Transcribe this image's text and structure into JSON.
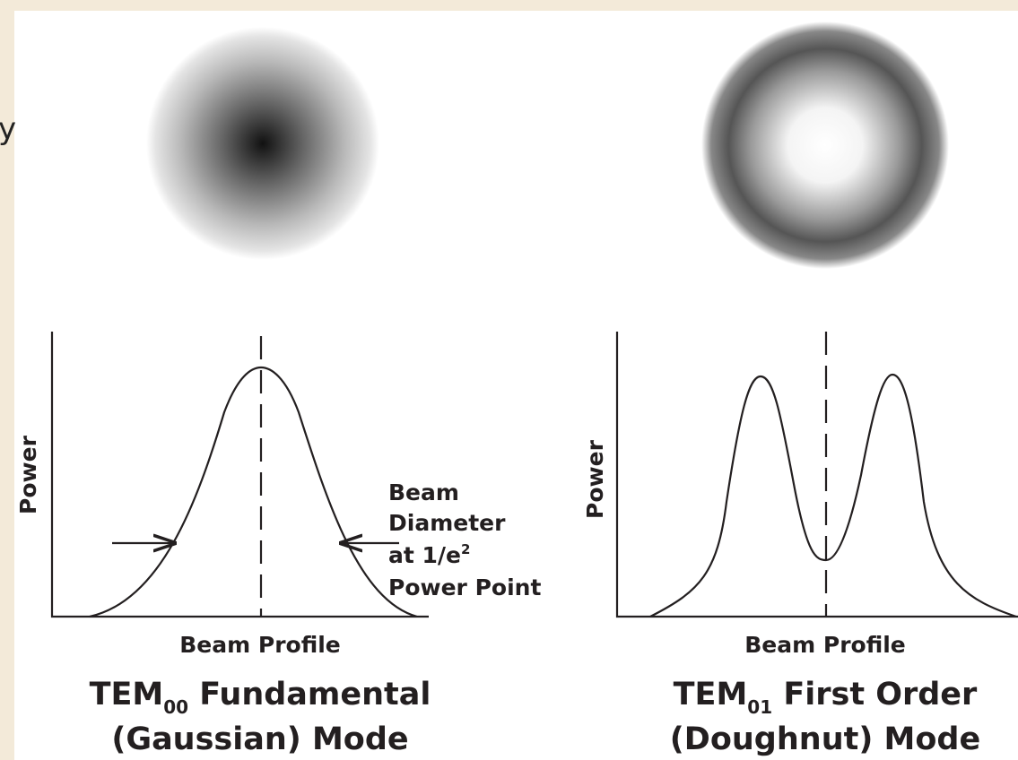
{
  "edge_text": "y",
  "left_panel": {
    "y_axis_label": "Power",
    "x_axis_label": "Beam Profile",
    "annotation": [
      "Beam",
      "Diameter",
      {
        "text": "at 1/e",
        "superscript": "2"
      },
      "Power Point"
    ],
    "title": {
      "prefix": "TEM",
      "subscript": "00",
      "rest": " Fundamental",
      "line2": "(Gaussian) Mode"
    }
  },
  "right_panel": {
    "y_axis_label": "Power",
    "x_axis_label": "Beam Profile",
    "title": {
      "prefix": "TEM",
      "subscript": "01",
      "rest": " First Order",
      "line2": "(Doughnut) Mode"
    }
  }
}
